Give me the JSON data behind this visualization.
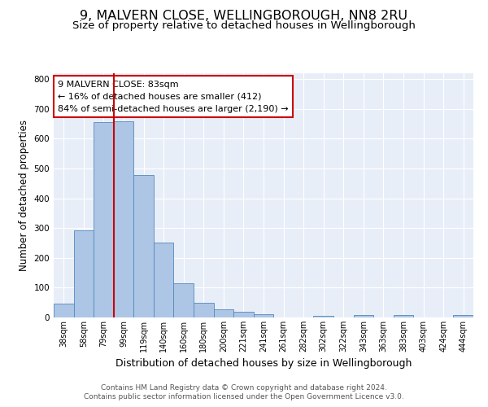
{
  "title": "9, MALVERN CLOSE, WELLINGBOROUGH, NN8 2RU",
  "subtitle": "Size of property relative to detached houses in Wellingborough",
  "xlabel": "Distribution of detached houses by size in Wellingborough",
  "ylabel": "Number of detached properties",
  "categories": [
    "38sqm",
    "58sqm",
    "79sqm",
    "99sqm",
    "119sqm",
    "140sqm",
    "160sqm",
    "180sqm",
    "200sqm",
    "221sqm",
    "241sqm",
    "261sqm",
    "282sqm",
    "302sqm",
    "322sqm",
    "343sqm",
    "363sqm",
    "383sqm",
    "403sqm",
    "424sqm",
    "444sqm"
  ],
  "values": [
    47,
    293,
    655,
    660,
    477,
    252,
    115,
    49,
    27,
    20,
    12,
    0,
    0,
    5,
    0,
    7,
    0,
    7,
    0,
    0,
    8
  ],
  "bar_color": "#adc6e5",
  "bar_edge_color": "#5588bb",
  "vline_x": 2,
  "vline_color": "#cc0000",
  "annotation_text": "9 MALVERN CLOSE: 83sqm\n← 16% of detached houses are smaller (412)\n84% of semi-detached houses are larger (2,190) →",
  "annotation_box_color": "#ffffff",
  "annotation_box_edge": "#cc0000",
  "footnote_line1": "Contains HM Land Registry data © Crown copyright and database right 2024.",
  "footnote_line2": "Contains public sector information licensed under the Open Government Licence v3.0.",
  "ylim": [
    0,
    820
  ],
  "background_color": "#e8eef8",
  "grid_color": "#ffffff",
  "title_fontsize": 11.5,
  "subtitle_fontsize": 9.5,
  "tick_fontsize": 7,
  "ylabel_fontsize": 8.5,
  "xlabel_fontsize": 9,
  "footnote_fontsize": 6.5,
  "annotation_fontsize": 8
}
